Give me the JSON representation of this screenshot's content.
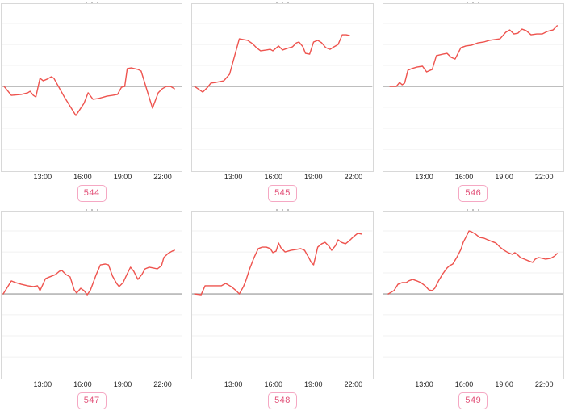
{
  "colors": {
    "line": "#ee534e",
    "baseline": "#b5b5b5",
    "gridline": "#f0f0f0",
    "panel_border": "#d8d8d8",
    "badge_border": "#f5a8c3",
    "badge_text": "#e2537a",
    "tick_text": "#1f1f1f"
  },
  "plot": {
    "baseline_pct": 49.3,
    "gridlines_pct": [
      11.6,
      24.2,
      36.7,
      61.8,
      74.4,
      87.0
    ]
  },
  "chart_data": [
    {
      "id": "544",
      "label": "544",
      "type": "line",
      "x_axis": {
        "tick_labels": [
          "13:00",
          "16:00",
          "19:00",
          "22:00"
        ],
        "tick_positions_pct": [
          23,
          45,
          67,
          89
        ]
      },
      "y_axis": {
        "baseline": 0,
        "labels_visible": false
      },
      "points": [
        [
          1.4,
          0
        ],
        [
          5.4,
          -5.3
        ],
        [
          10.9,
          -4.8
        ],
        [
          14.5,
          -3.8
        ],
        [
          15.8,
          -2.9
        ],
        [
          17.6,
          -5.3
        ],
        [
          19,
          -6.3
        ],
        [
          21.3,
          4.9
        ],
        [
          23.1,
          3.4
        ],
        [
          25.3,
          4.4
        ],
        [
          27.6,
          5.8
        ],
        [
          29,
          4.9
        ],
        [
          34.8,
          -6.3
        ],
        [
          41.2,
          -17.4
        ],
        [
          45.7,
          -10.1
        ],
        [
          48,
          -3.8
        ],
        [
          50.7,
          -7.7
        ],
        [
          53.8,
          -7.2
        ],
        [
          58.4,
          -5.8
        ],
        [
          61.5,
          -5.3
        ],
        [
          64.3,
          -4.8
        ],
        [
          66.5,
          -0.5
        ],
        [
          68.3,
          0
        ],
        [
          69.7,
          10.7
        ],
        [
          71.9,
          11.1
        ],
        [
          75.6,
          10.2
        ],
        [
          77.4,
          9.2
        ],
        [
          83.7,
          -13
        ],
        [
          86.9,
          -3.8
        ],
        [
          89.1,
          -1.4
        ],
        [
          91.4,
          0
        ],
        [
          93.7,
          0
        ],
        [
          95.9,
          -1.4
        ]
      ]
    },
    {
      "id": "545",
      "label": "545",
      "type": "line",
      "x_axis": {
        "tick_labels": [
          "13:00",
          "16:00",
          "19:00",
          "22:00"
        ],
        "tick_positions_pct": [
          23,
          45,
          67,
          89
        ]
      },
      "y_axis": {
        "baseline": 0,
        "labels_visible": false
      },
      "points": [
        [
          1.4,
          0
        ],
        [
          5.9,
          -3.4
        ],
        [
          8.6,
          -0.5
        ],
        [
          10.4,
          2
        ],
        [
          13.1,
          2.4
        ],
        [
          17.6,
          3.4
        ],
        [
          20.8,
          7.3
        ],
        [
          26.2,
          28.5
        ],
        [
          30.8,
          27.6
        ],
        [
          33.5,
          25.6
        ],
        [
          35.7,
          23.2
        ],
        [
          38,
          21.3
        ],
        [
          41.2,
          21.8
        ],
        [
          43.4,
          22.2
        ],
        [
          44.8,
          21.3
        ],
        [
          48,
          24.2
        ],
        [
          50.2,
          21.8
        ],
        [
          52.5,
          22.7
        ],
        [
          55.7,
          23.7
        ],
        [
          57.9,
          26.1
        ],
        [
          59.3,
          26.6
        ],
        [
          61.5,
          23.7
        ],
        [
          62.9,
          19.8
        ],
        [
          65.2,
          19.3
        ],
        [
          67.4,
          26.6
        ],
        [
          69.7,
          27.6
        ],
        [
          71.9,
          26.1
        ],
        [
          74.2,
          23.2
        ],
        [
          76.5,
          22.2
        ],
        [
          78.7,
          23.7
        ],
        [
          81,
          25.1
        ],
        [
          83.3,
          30.9
        ],
        [
          85.5,
          30.9
        ],
        [
          87.3,
          30.5
        ]
      ]
    },
    {
      "id": "546",
      "label": "546",
      "type": "line",
      "x_axis": {
        "tick_labels": [
          "13:00",
          "16:00",
          "19:00",
          "22:00"
        ],
        "tick_positions_pct": [
          23,
          45,
          67,
          89
        ]
      },
      "y_axis": {
        "baseline": 0,
        "labels_visible": false
      },
      "points": [
        [
          3.6,
          0
        ],
        [
          7.2,
          0
        ],
        [
          9,
          2.4
        ],
        [
          10.4,
          1
        ],
        [
          11.8,
          2
        ],
        [
          13.6,
          9.7
        ],
        [
          15.8,
          10.7
        ],
        [
          18.6,
          11.6
        ],
        [
          21.7,
          12.1
        ],
        [
          24,
          8.7
        ],
        [
          27.1,
          10.2
        ],
        [
          29.4,
          18.4
        ],
        [
          33,
          19.3
        ],
        [
          35.3,
          19.8
        ],
        [
          37.6,
          17.4
        ],
        [
          39.8,
          16.4
        ],
        [
          43,
          23.2
        ],
        [
          45.7,
          24.2
        ],
        [
          48.9,
          24.7
        ],
        [
          52.5,
          26.1
        ],
        [
          55.7,
          26.6
        ],
        [
          58.8,
          27.6
        ],
        [
          61.5,
          28
        ],
        [
          64.7,
          28.5
        ],
        [
          67.9,
          32.4
        ],
        [
          70.1,
          33.8
        ],
        [
          72.4,
          31.4
        ],
        [
          74.7,
          31.9
        ],
        [
          76.9,
          34.3
        ],
        [
          79.2,
          33.4
        ],
        [
          81.9,
          30.9
        ],
        [
          85.1,
          31.4
        ],
        [
          88.2,
          31.4
        ],
        [
          90.9,
          32.9
        ],
        [
          94.1,
          33.8
        ],
        [
          96.4,
          36.3
        ]
      ]
    },
    {
      "id": "547",
      "label": "547",
      "type": "line",
      "x_axis": {
        "tick_labels": [
          "13:00",
          "16:00",
          "19:00",
          "22:00"
        ],
        "tick_positions_pct": [
          23,
          45,
          67,
          89
        ]
      },
      "y_axis": {
        "baseline": 0,
        "labels_visible": false
      },
      "points": [
        [
          0.9,
          0
        ],
        [
          5.4,
          7.8
        ],
        [
          7.7,
          6.8
        ],
        [
          10.9,
          5.8
        ],
        [
          14.5,
          4.9
        ],
        [
          17.6,
          4.4
        ],
        [
          19.9,
          4.9
        ],
        [
          21.3,
          2
        ],
        [
          24.4,
          9.2
        ],
        [
          26.7,
          10.2
        ],
        [
          29.9,
          11.6
        ],
        [
          32.1,
          13.6
        ],
        [
          33.5,
          14
        ],
        [
          35.7,
          11.6
        ],
        [
          38,
          10.2
        ],
        [
          40.3,
          2.4
        ],
        [
          41.6,
          0.5
        ],
        [
          43.9,
          3.4
        ],
        [
          45.7,
          2
        ],
        [
          47.5,
          -0.5
        ],
        [
          49.3,
          2.4
        ],
        [
          52.5,
          11.6
        ],
        [
          54.8,
          17.4
        ],
        [
          57.5,
          17.9
        ],
        [
          59.3,
          17.4
        ],
        [
          61.5,
          10.7
        ],
        [
          63.8,
          6.3
        ],
        [
          65.2,
          4.4
        ],
        [
          67.4,
          6.8
        ],
        [
          69.7,
          12.1
        ],
        [
          71.5,
          16
        ],
        [
          73.3,
          13.6
        ],
        [
          75.6,
          8.7
        ],
        [
          77.8,
          11.6
        ],
        [
          79.6,
          15
        ],
        [
          81.9,
          16
        ],
        [
          84.2,
          15.5
        ],
        [
          86.4,
          15
        ],
        [
          88.7,
          16.9
        ],
        [
          90,
          21.8
        ],
        [
          92.3,
          24.2
        ],
        [
          94.6,
          25.6
        ],
        [
          95.9,
          26.1
        ]
      ]
    },
    {
      "id": "548",
      "label": "548",
      "type": "line",
      "x_axis": {
        "tick_labels": [
          "13:00",
          "16:00",
          "19:00",
          "22:00"
        ],
        "tick_positions_pct": [
          23,
          45,
          67,
          89
        ]
      },
      "y_axis": {
        "baseline": 0,
        "labels_visible": false
      },
      "points": [
        [
          1.4,
          0
        ],
        [
          5,
          -0.5
        ],
        [
          7.2,
          4.9
        ],
        [
          10.4,
          4.9
        ],
        [
          13.1,
          4.9
        ],
        [
          16.3,
          4.9
        ],
        [
          18.6,
          6.3
        ],
        [
          21.7,
          4.4
        ],
        [
          24.4,
          2
        ],
        [
          26.2,
          0
        ],
        [
          28.5,
          4.4
        ],
        [
          29.9,
          8.2
        ],
        [
          32.1,
          15.5
        ],
        [
          34.4,
          21.8
        ],
        [
          36.7,
          27.1
        ],
        [
          38.9,
          28
        ],
        [
          41.2,
          28
        ],
        [
          43.4,
          27.1
        ],
        [
          44.8,
          24.7
        ],
        [
          46.6,
          25.6
        ],
        [
          48,
          30.5
        ],
        [
          49.3,
          27.6
        ],
        [
          51.6,
          25.1
        ],
        [
          54.8,
          26.1
        ],
        [
          57.9,
          26.6
        ],
        [
          60.2,
          27.1
        ],
        [
          62.4,
          26.1
        ],
        [
          64.7,
          21.8
        ],
        [
          66.1,
          18.9
        ],
        [
          67.4,
          17.4
        ],
        [
          69.7,
          28
        ],
        [
          71.9,
          30
        ],
        [
          73.8,
          30.9
        ],
        [
          76,
          28.5
        ],
        [
          77.4,
          26.1
        ],
        [
          79.6,
          29
        ],
        [
          81,
          32.4
        ],
        [
          82.8,
          30.9
        ],
        [
          85.1,
          30
        ],
        [
          87.3,
          31.9
        ],
        [
          89.6,
          34.3
        ],
        [
          91.9,
          36.3
        ],
        [
          94.1,
          35.8
        ]
      ]
    },
    {
      "id": "549",
      "label": "549",
      "type": "line",
      "x_axis": {
        "tick_labels": [
          "13:00",
          "16:00",
          "19:00",
          "22:00"
        ],
        "tick_positions_pct": [
          23,
          45,
          67,
          89
        ]
      },
      "y_axis": {
        "baseline": 0,
        "labels_visible": false
      },
      "points": [
        [
          2.7,
          0
        ],
        [
          5.9,
          2
        ],
        [
          8.1,
          5.8
        ],
        [
          10.4,
          6.8
        ],
        [
          12.7,
          6.8
        ],
        [
          14,
          7.8
        ],
        [
          16.3,
          8.7
        ],
        [
          18.6,
          7.8
        ],
        [
          20.8,
          6.8
        ],
        [
          23.1,
          4.9
        ],
        [
          25.3,
          2.4
        ],
        [
          27.1,
          2
        ],
        [
          28.5,
          3.4
        ],
        [
          30.8,
          8.2
        ],
        [
          33,
          12.1
        ],
        [
          35.3,
          15.5
        ],
        [
          36.7,
          16.9
        ],
        [
          38.5,
          17.9
        ],
        [
          40.7,
          21.8
        ],
        [
          43,
          26.6
        ],
        [
          44.3,
          30.9
        ],
        [
          45.7,
          33.8
        ],
        [
          47.5,
          37.7
        ],
        [
          48.9,
          37.2
        ],
        [
          51.1,
          35.8
        ],
        [
          53.4,
          33.8
        ],
        [
          55.7,
          33.4
        ],
        [
          57.9,
          32.4
        ],
        [
          60.2,
          31.4
        ],
        [
          62.4,
          30.5
        ],
        [
          64.7,
          28
        ],
        [
          67,
          26.1
        ],
        [
          69.2,
          24.7
        ],
        [
          71.5,
          23.7
        ],
        [
          72.9,
          24.7
        ],
        [
          74.7,
          23.2
        ],
        [
          76,
          21.8
        ],
        [
          78.3,
          20.8
        ],
        [
          80.5,
          19.8
        ],
        [
          82.8,
          18.9
        ],
        [
          84.2,
          20.8
        ],
        [
          86,
          21.8
        ],
        [
          88.2,
          21.3
        ],
        [
          90,
          20.8
        ],
        [
          92.8,
          21.3
        ],
        [
          95,
          22.7
        ],
        [
          96.4,
          24.2
        ]
      ]
    }
  ]
}
